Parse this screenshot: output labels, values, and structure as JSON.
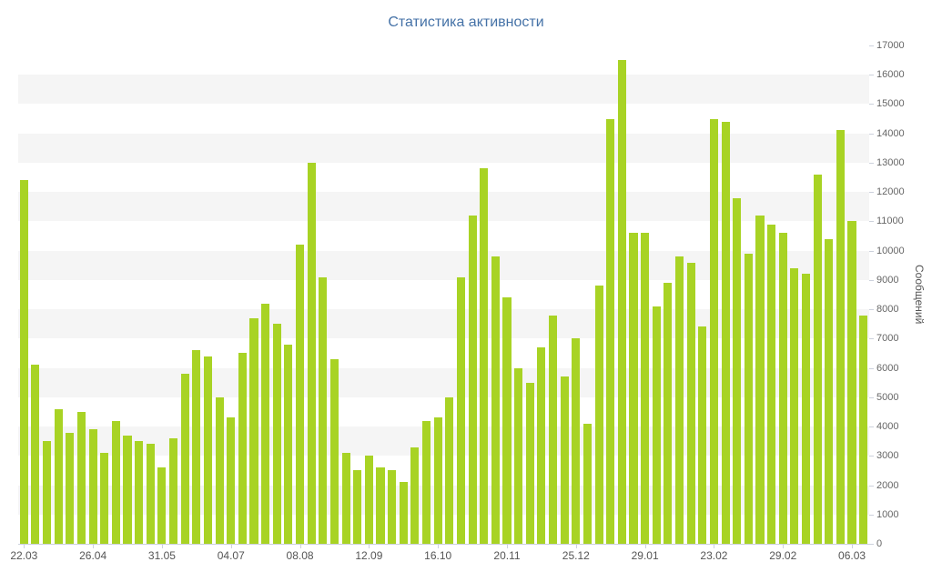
{
  "chart_data": {
    "type": "bar",
    "title": "Статистика активности",
    "xlabel": "",
    "ylabel": "Сообщений",
    "ylim": [
      0,
      17000
    ],
    "y_tick_step": 1000,
    "y_ticks": [
      0,
      1000,
      2000,
      3000,
      4000,
      5000,
      6000,
      7000,
      8000,
      9000,
      10000,
      11000,
      12000,
      13000,
      14000,
      15000,
      16000,
      17000
    ],
    "x_tick_labels": [
      "22.03",
      "26.04",
      "31.05",
      "04.07",
      "08.08",
      "12.09",
      "16.10",
      "20.11",
      "25.12",
      "29.01",
      "23.02",
      "29.02",
      "06.03"
    ],
    "x_tick_indices": [
      0,
      6,
      12,
      18,
      24,
      30,
      36,
      42,
      48,
      54,
      60,
      66,
      72
    ],
    "values": [
      12400,
      6100,
      3500,
      4600,
      3800,
      4500,
      3900,
      3100,
      4200,
      3700,
      3500,
      3400,
      2600,
      3600,
      5800,
      6600,
      6400,
      5000,
      4300,
      6500,
      7700,
      8200,
      7500,
      6800,
      10200,
      13000,
      9100,
      6300,
      3100,
      2500,
      3000,
      2600,
      2500,
      2100,
      3300,
      4200,
      4300,
      5000,
      9100,
      11200,
      12800,
      9800,
      8400,
      6000,
      5500,
      6700,
      7800,
      5700,
      7000,
      4100,
      8800,
      14500,
      16500,
      10600,
      10600,
      8100,
      8900,
      9800,
      9600,
      7400,
      14500,
      14400,
      11800,
      9900,
      11200,
      10900,
      10600,
      9400,
      9200,
      12600,
      10400,
      14100,
      11000,
      7800
    ],
    "grid": "alternating-horizontal-bands",
    "legend": "none",
    "colors": {
      "bar": "#a8d324",
      "stripe": "#f5f5f5",
      "title": "#4572a7",
      "axis_line": "#ccd1dc",
      "y_tick_label": "#666666",
      "x_tick_label": "#555555",
      "y_axis_title": "#555555"
    }
  }
}
